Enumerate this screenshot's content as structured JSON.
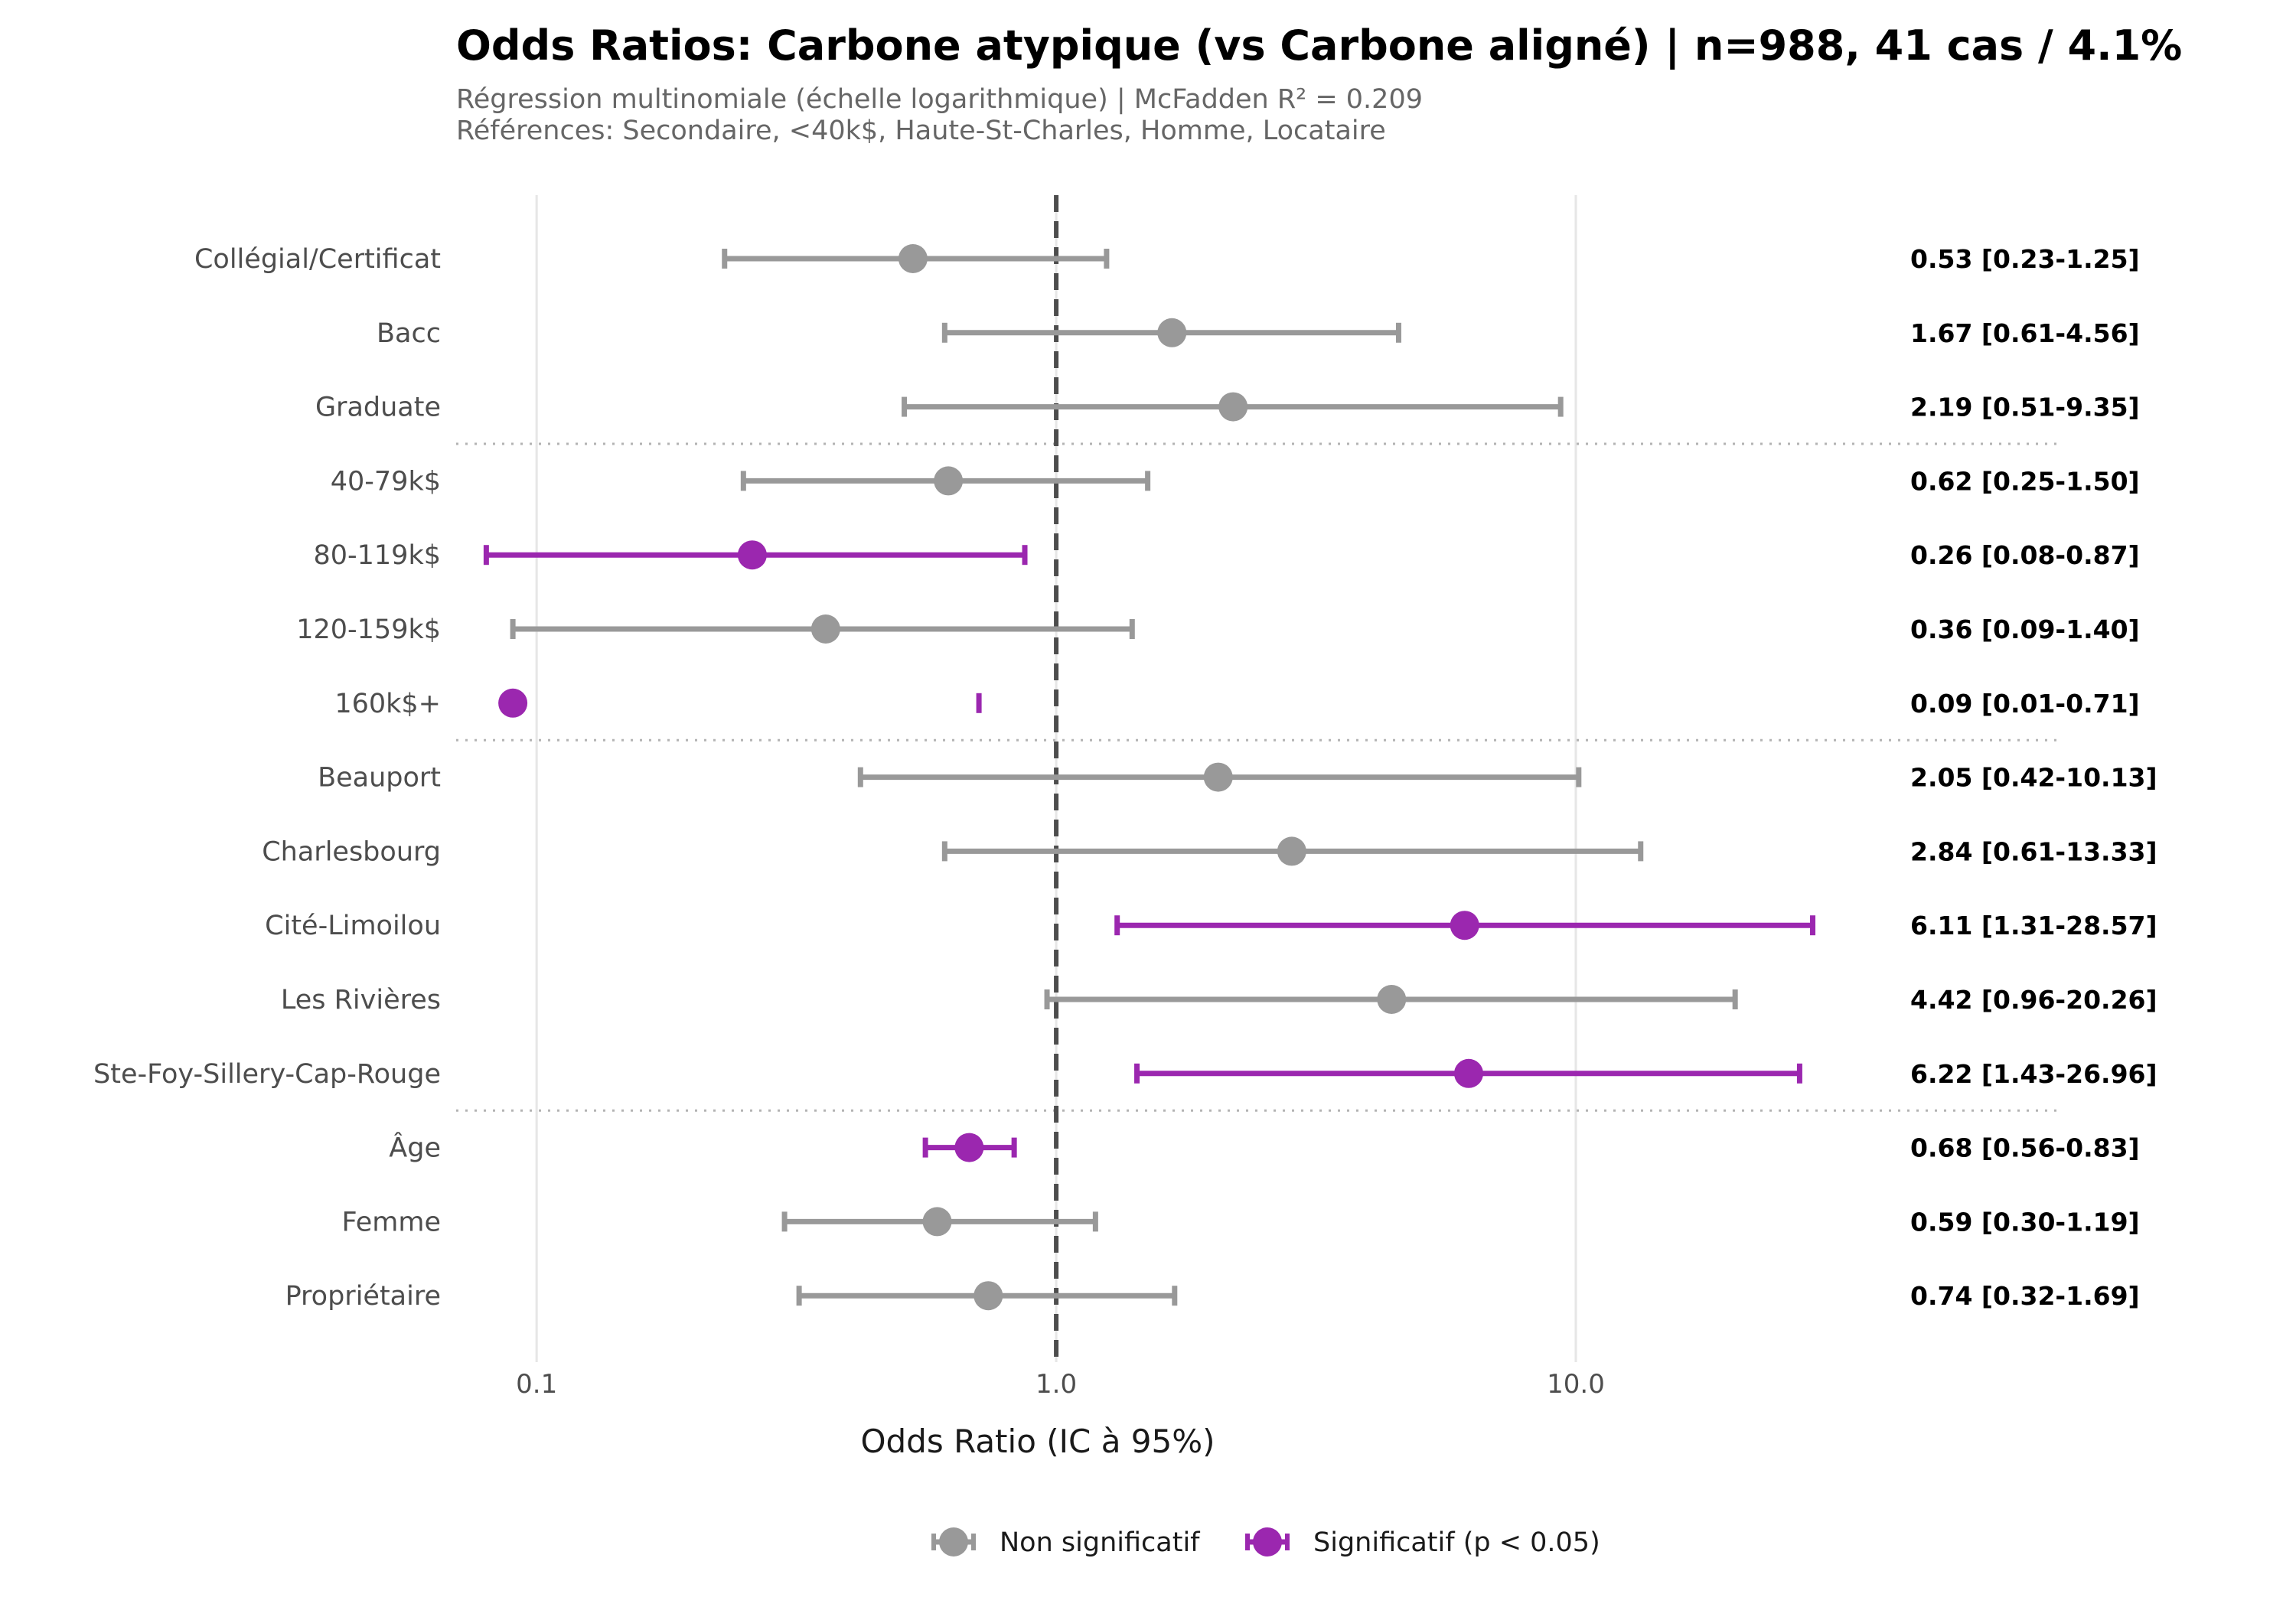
{
  "chart_data": {
    "type": "forest",
    "title": "Odds Ratios: Carbone atypique (vs Carbone aligné) | n=988, 41 cas / 4.1%",
    "subtitle_lines": [
      "Régression multinomiale (échelle logarithmique) | McFadden R² = 0.209",
      "Références: Secondaire, <40k$, Haute-St-Charles, Homme, Locataire"
    ],
    "xlabel": "Odds Ratio (IC à 95%)",
    "x_scale": "log",
    "xlim": [
      0.07,
      85
    ],
    "x_ticks": [
      0.1,
      1.0,
      10.0
    ],
    "x_tick_labels": [
      "0.1",
      "1.0",
      "10.0"
    ],
    "reference_line": 1.0,
    "colors": {
      "non_significant": "#999999",
      "significant": "#9b27af"
    },
    "groups": [
      {
        "rows": [
          {
            "label": "Collégial/Certificat",
            "or": 0.53,
            "lo": 0.23,
            "hi": 1.25,
            "sig": false,
            "text": "0.53 [0.23-1.25]"
          },
          {
            "label": "Bacc",
            "or": 1.67,
            "lo": 0.61,
            "hi": 4.56,
            "sig": false,
            "text": "1.67 [0.61-4.56]"
          },
          {
            "label": "Graduate",
            "or": 2.19,
            "lo": 0.51,
            "hi": 9.35,
            "sig": false,
            "text": "2.19 [0.51-9.35]"
          }
        ]
      },
      {
        "rows": [
          {
            "label": "40-79k$",
            "or": 0.62,
            "lo": 0.25,
            "hi": 1.5,
            "sig": false,
            "text": "0.62 [0.25-1.50]"
          },
          {
            "label": "80-119k$",
            "or": 0.26,
            "lo": 0.08,
            "hi": 0.87,
            "sig": true,
            "text": "0.26 [0.08-0.87]"
          },
          {
            "label": "120-159k$",
            "or": 0.36,
            "lo": 0.09,
            "hi": 1.4,
            "sig": false,
            "text": "0.36 [0.09-1.40]"
          },
          {
            "label": "160k$+",
            "or": 0.09,
            "lo": 0.01,
            "hi": 0.71,
            "sig": true,
            "text": "0.09 [0.01-0.71]"
          }
        ]
      },
      {
        "rows": [
          {
            "label": "Beauport",
            "or": 2.05,
            "lo": 0.42,
            "hi": 10.13,
            "sig": false,
            "text": "2.05 [0.42-10.13]"
          },
          {
            "label": "Charlesbourg",
            "or": 2.84,
            "lo": 0.61,
            "hi": 13.33,
            "sig": false,
            "text": "2.84 [0.61-13.33]"
          },
          {
            "label": "Cité-Limoilou",
            "or": 6.11,
            "lo": 1.31,
            "hi": 28.57,
            "sig": true,
            "text": "6.11 [1.31-28.57]"
          },
          {
            "label": "Les Rivières",
            "or": 4.42,
            "lo": 0.96,
            "hi": 20.26,
            "sig": false,
            "text": "4.42 [0.96-20.26]"
          },
          {
            "label": "Ste-Foy-Sillery-Cap-Rouge",
            "or": 6.22,
            "lo": 1.43,
            "hi": 26.96,
            "sig": true,
            "text": "6.22 [1.43-26.96]"
          }
        ]
      },
      {
        "rows": [
          {
            "label": "Âge",
            "or": 0.68,
            "lo": 0.56,
            "hi": 0.83,
            "sig": true,
            "text": "0.68 [0.56-0.83]"
          },
          {
            "label": "Femme",
            "or": 0.59,
            "lo": 0.3,
            "hi": 1.19,
            "sig": false,
            "text": "0.59 [0.30-1.19]"
          },
          {
            "label": "Propriétaire",
            "or": 0.74,
            "lo": 0.32,
            "hi": 1.69,
            "sig": false,
            "text": "0.74 [0.32-1.69]"
          }
        ]
      }
    ],
    "legend": {
      "position": "bottom",
      "entries": [
        {
          "label": "Non significatif",
          "key": "non_significant"
        },
        {
          "label": "Significatif (p < 0.05)",
          "key": "significant"
        }
      ]
    }
  }
}
